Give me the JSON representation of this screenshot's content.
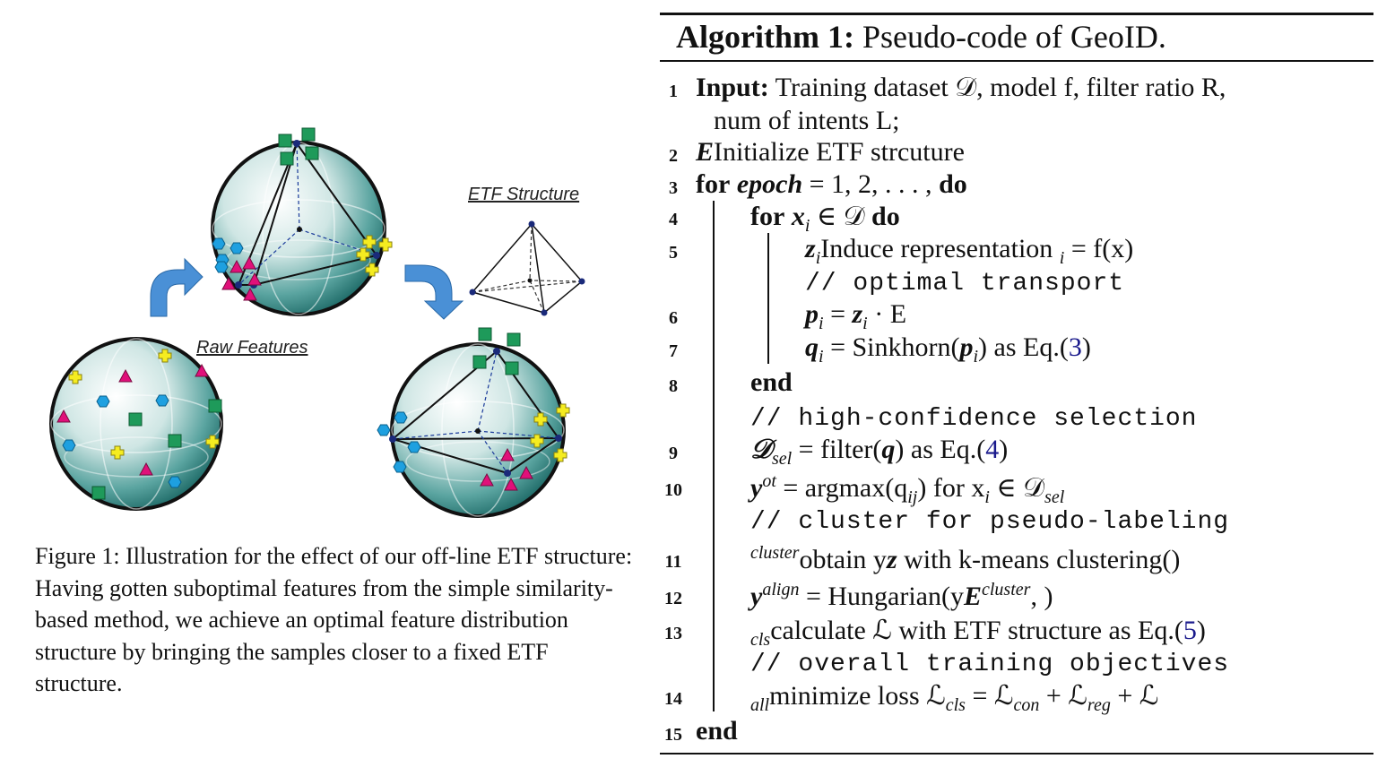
{
  "figure": {
    "label_etf": "ETF Structure",
    "label_raw": "Raw Features",
    "colors": {
      "sphere_fill": "#2e8080",
      "green": "#1e9a5a",
      "blue": "#1ea0e0",
      "magenta": "#e0107a",
      "yellow": "#f5ec20",
      "arrow": "#4a90d6"
    },
    "icons": [
      "green-square-marker",
      "blue-hexagon-marker",
      "magenta-triangle-marker",
      "yellow-cross-marker",
      "curved-arrow-icon",
      "tetrahedron-icon"
    ]
  },
  "caption": "Figure 1: Illustration for the effect of our off-line ETF structure: Having gotten suboptimal features from the simple similarity-based method, we achieve an optimal feature distribution structure by bringing the samples closer to a fixed ETF structure.",
  "algorithm": {
    "title_bold": "Algorithm 1:",
    "title_rest": " Pseudo-code of GeoID.",
    "lines": [
      {
        "num": "1",
        "kw": "Input:",
        "text": " Training dataset 𝒟, model f, filter ratio R,"
      },
      {
        "num": "",
        "text": "num of intents L;"
      },
      {
        "num": "2",
        "text": "Initialize ETF strcuture ",
        "math": "E"
      },
      {
        "num": "3",
        "kw": "for",
        "math": " epoch",
        "text": " = 1, 2, . . . , ",
        "kw2": "do"
      },
      {
        "num": "4",
        "kw": "for",
        "math": " x",
        "sub": "i",
        "text": " ∈ 𝒟 ",
        "kw2": "do"
      },
      {
        "num": "5",
        "text": "Induce representation ",
        "math": "z",
        "sub": "i",
        "text2": " = f(x",
        "sub2": "i",
        "text3": ")"
      },
      {
        "num": "",
        "comment": "// optimal transport"
      },
      {
        "num": "6",
        "math": "p",
        "sub": "i",
        "text": " = ",
        "math2": "z",
        "sub2": "i",
        "text2": " · E"
      },
      {
        "num": "7",
        "math": "q",
        "sub": "i",
        "text": " = Sinkhorn(",
        "math2": "p",
        "sub2": "i",
        "text2": ") as Eq.(",
        "ref": "3",
        "text3": ")"
      },
      {
        "num": "8",
        "kw": "end"
      },
      {
        "num": "",
        "comment": "// high-confidence selection"
      },
      {
        "num": "9",
        "math": "𝒟",
        "sub": "sel",
        "text": " = filter(",
        "math2": "q",
        "text2": ") as Eq.(",
        "ref": "4",
        "text3": ")"
      },
      {
        "num": "10",
        "math": "y",
        "sup": "ot",
        "text": " = argmax(q",
        "sub2": "ij",
        "text2": ") for x",
        "sub3": "i",
        "text3": " ∈ 𝒟",
        "sub4": "sel"
      },
      {
        "num": "",
        "comment": "// cluster for pseudo-labeling"
      },
      {
        "num": "11",
        "text": "obtain y",
        "sup": "cluster",
        "text2": " with k-means clustering(",
        "math2": "z",
        "text3": ")"
      },
      {
        "num": "12",
        "math": "y",
        "sup": "align",
        "text": " = Hungarian(y",
        "sup2": "cluster",
        "text2": ", ",
        "math2": "E",
        "text3": ")"
      },
      {
        "num": "13",
        "text": "calculate ℒ",
        "sub": "cls",
        "text2": " with ETF structure as Eq.(",
        "ref": "5",
        "text3": ")"
      },
      {
        "num": "",
        "comment": "// overall training objectives"
      },
      {
        "num": "14",
        "text": "minimize loss ℒ",
        "sub": "all",
        "text2": " = ℒ",
        "sub2": "cls",
        "text3": " + ℒ",
        "sub3": "con",
        "text4": " + ℒ",
        "sub4": "reg"
      },
      {
        "num": "15",
        "kw": "end"
      }
    ]
  }
}
